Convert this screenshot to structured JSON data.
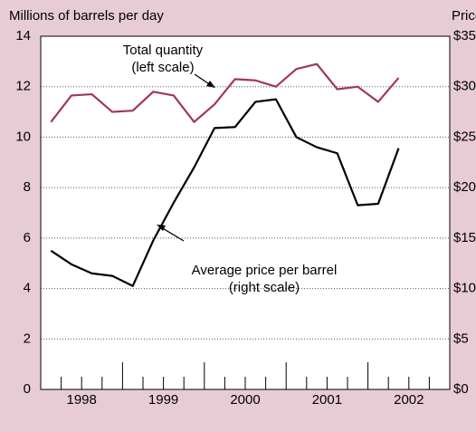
{
  "chart_data": {
    "type": "line",
    "y_label": "Millions of barrels per day",
    "y2_label": "Price",
    "x": [
      1998.125,
      1998.375,
      1998.625,
      1998.875,
      1999.125,
      1999.375,
      1999.625,
      1999.875,
      2000.125,
      2000.375,
      2000.625,
      2000.875,
      2001.125,
      2001.375,
      2001.625,
      2001.875,
      2002.125,
      2002.375
    ],
    "xlim": [
      1998,
      2003
    ],
    "xticks": [
      {
        "value": 1998.5,
        "label": "1998"
      },
      {
        "value": 1999.5,
        "label": "1999"
      },
      {
        "value": 2000.5,
        "label": "2000"
      },
      {
        "value": 2001.5,
        "label": "2001"
      },
      {
        "value": 2002.5,
        "label": "2002"
      }
    ],
    "ylim": [
      0,
      14
    ],
    "yticks": [
      0,
      2,
      4,
      6,
      8,
      10,
      12,
      14
    ],
    "y2lim": [
      0,
      35
    ],
    "y2ticks": [
      {
        "value": 0,
        "label": "$0"
      },
      {
        "value": 5,
        "label": "$5"
      },
      {
        "value": 10,
        "label": "$10"
      },
      {
        "value": 15,
        "label": "$15"
      },
      {
        "value": 20,
        "label": "$20"
      },
      {
        "value": 25,
        "label": "$25"
      },
      {
        "value": 30,
        "label": "$30"
      },
      {
        "value": 35,
        "label": "$35"
      }
    ],
    "grid": true,
    "series": [
      {
        "name": "Total quantity",
        "color": "#a0365f",
        "values": [
          10.6,
          11.65,
          11.7,
          11.0,
          11.05,
          11.8,
          11.65,
          10.6,
          11.3,
          12.3,
          12.25,
          12.0,
          12.7,
          12.9,
          11.9,
          12.0,
          11.4,
          12.35
        ]
      },
      {
        "name": "Average price per barrel",
        "color": "#000000",
        "axis": "y2",
        "values": [
          13.75,
          12.4,
          11.5,
          11.25,
          10.25,
          14.75,
          18.5,
          22,
          25.9,
          26,
          28.5,
          28.75,
          25,
          24,
          23.4,
          18.25,
          18.4,
          23.9
        ]
      }
    ],
    "annotations": [
      {
        "lines": [
          "Total quantity",
          "(left scale)"
        ]
      },
      {
        "lines": [
          "Average price per barrel",
          "(right scale)"
        ]
      }
    ]
  }
}
